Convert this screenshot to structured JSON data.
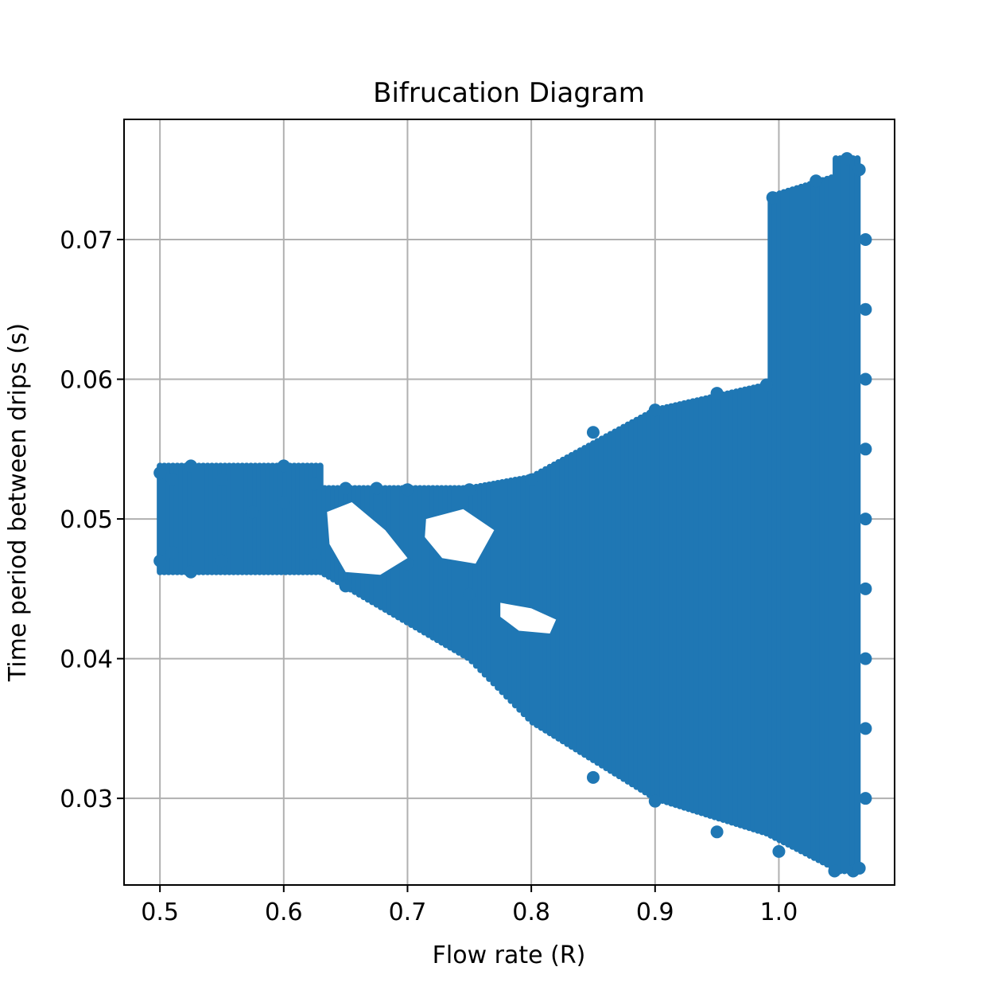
{
  "chart_data": {
    "type": "scatter",
    "title": "Bifrucation Diagram",
    "xlabel": "Flow rate (R)",
    "ylabel": "Time period between drips (s)",
    "xlim": [
      0.471,
      1.0935
    ],
    "ylim": [
      0.0238,
      0.0786
    ],
    "xticks": [
      0.5,
      0.6,
      0.7,
      0.8,
      0.9,
      1.0
    ],
    "xtick_labels": [
      "0.5",
      "0.6",
      "0.7",
      "0.8",
      "0.9",
      "1.0"
    ],
    "yticks": [
      0.03,
      0.04,
      0.05,
      0.06,
      0.07
    ],
    "ytick_labels": [
      "0.03",
      "0.04",
      "0.05",
      "0.06",
      "0.07"
    ],
    "grid": true,
    "marker_color": "#1f77b4",
    "x_range": [
      0.5,
      1.065
    ],
    "series": [
      {
        "points": [
          [
            0.5,
            0.0533
          ],
          [
            0.5,
            0.047
          ],
          [
            0.51,
            0.0528
          ],
          [
            0.51,
            0.0476
          ],
          [
            0.525,
            0.0538
          ],
          [
            0.525,
            0.0462
          ],
          [
            0.55,
            0.0528
          ],
          [
            0.55,
            0.047
          ],
          [
            0.575,
            0.0505
          ],
          [
            0.6,
            0.0538
          ],
          [
            0.6,
            0.0512
          ],
          [
            0.625,
            0.0525
          ],
          [
            0.625,
            0.0475
          ],
          [
            0.65,
            0.0522
          ],
          [
            0.65,
            0.0452
          ],
          [
            0.675,
            0.0522
          ],
          [
            0.675,
            0.0476
          ],
          [
            0.7,
            0.0521
          ],
          [
            0.7,
            0.0468
          ],
          [
            0.75,
            0.0521
          ],
          [
            0.75,
            0.0446
          ],
          [
            0.8,
            0.0528
          ],
          [
            0.8,
            0.0425
          ],
          [
            0.85,
            0.0562
          ],
          [
            0.85,
            0.0315
          ],
          [
            0.9,
            0.0578
          ],
          [
            0.9,
            0.0298
          ],
          [
            0.95,
            0.059
          ],
          [
            0.95,
            0.0276
          ],
          [
            0.99,
            0.0596
          ],
          [
            0.995,
            0.073
          ],
          [
            1.0,
            0.0262
          ],
          [
            1.03,
            0.0742
          ],
          [
            1.045,
            0.0248
          ],
          [
            1.055,
            0.0758
          ],
          [
            1.06,
            0.0248
          ],
          [
            1.065,
            0.075
          ],
          [
            1.065,
            0.025
          ],
          [
            1.07,
            0.07
          ],
          [
            1.07,
            0.065
          ],
          [
            1.07,
            0.06
          ],
          [
            1.07,
            0.055
          ],
          [
            1.07,
            0.05
          ],
          [
            1.07,
            0.045
          ],
          [
            1.07,
            0.04
          ],
          [
            1.07,
            0.035
          ],
          [
            1.07,
            0.03
          ]
        ]
      }
    ]
  }
}
